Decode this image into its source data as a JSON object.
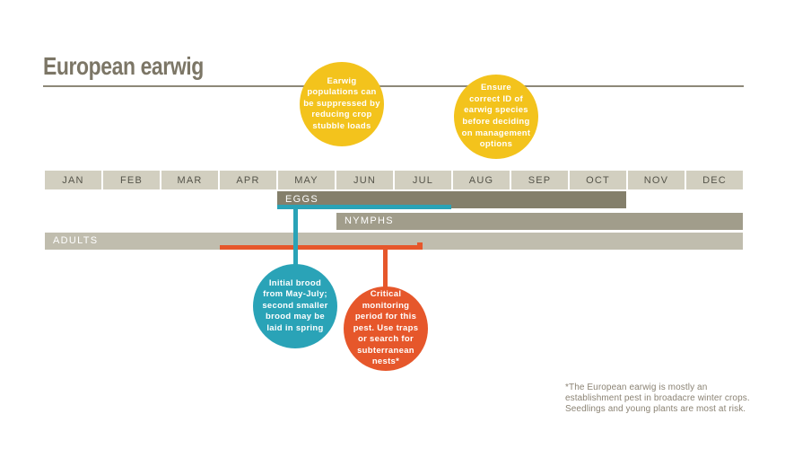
{
  "header": {
    "title": "European earwig"
  },
  "months": [
    "JAN",
    "FEB",
    "MAR",
    "APR",
    "MAY",
    "JUN",
    "JUL",
    "AUG",
    "SEP",
    "OCT",
    "NOV",
    "DEC"
  ],
  "bars": {
    "eggs": {
      "label": "EGGS"
    },
    "nymphs": {
      "label": "NYMPHS"
    },
    "adults": {
      "label": "ADULTS"
    }
  },
  "callouts": {
    "stubble": {
      "text": "Earwig\npopulations can\nbe suppressed by\nreducing crop\nstubble loads",
      "color": "#F3C31C"
    },
    "species_id": {
      "text": "Ensure\ncorrect ID of\nearwig species\nbefore deciding\non management\noptions",
      "color": "#F3C31C"
    },
    "brood": {
      "text": "Initial brood\nfrom May-July;\nsecond smaller\nbrood may be\nlaid in spring",
      "color": "#2AA3B7"
    },
    "monitoring": {
      "text": "Critical\nmonitoring\nperiod for this\npest. Use traps\nor search for\nsubterranean\nnests*",
      "color": "#E6572B"
    }
  },
  "footnote": "*The European earwig is mostly an\nestablishment pest in broadacre winter crops.\nSeedlings and young plants are most at risk.",
  "colors": {
    "yellow_callout": "#F3C31C",
    "teal_highlight": "#2AA3B7",
    "orange_highlight": "#E6572B",
    "bar_eggs": "#847F6B",
    "bar_nymphs": "#A19D8B",
    "bar_adults": "#C0BDAE",
    "month_cell": "#D2CFC0",
    "title_text": "#7C7666",
    "footnote_text": "#8B8374"
  },
  "chart_data": {
    "type": "bar",
    "subtype": "seasonal-timeline",
    "title": "European earwig",
    "categories": [
      "JAN",
      "FEB",
      "MAR",
      "APR",
      "MAY",
      "JUN",
      "JUL",
      "AUG",
      "SEP",
      "OCT",
      "NOV",
      "DEC"
    ],
    "series": [
      {
        "name": "EGGS",
        "start_month": "MAY",
        "end_month": "OCT",
        "color": "#847F6B"
      },
      {
        "name": "NYMPHS",
        "start_month": "JUN",
        "end_month": "DEC",
        "color": "#A19D8B"
      },
      {
        "name": "ADULTS",
        "start_month": "JAN",
        "end_month": "DEC",
        "color": "#C0BDAE"
      }
    ],
    "highlight_periods": [
      {
        "series": "EGGS",
        "start_month": "MAY",
        "end_month": "JUL",
        "color": "#2AA3B7",
        "annotation": "Initial brood from May-July; second smaller brood may be laid in spring"
      },
      {
        "series": "ADULTS",
        "start_month": "APR",
        "end_month": "mid-JUL",
        "color": "#E6572B",
        "annotation": "Critical monitoring period for this pest. Use traps or search for subterranean nests*"
      }
    ],
    "annotations": [
      "Earwig populations can be suppressed by reducing crop stubble loads",
      "Ensure correct ID of earwig species before deciding on management options"
    ],
    "footnote": "*The European earwig is mostly an establishment pest in broadacre winter crops. Seedlings and young plants are most at risk.",
    "legend_position": "none",
    "grid": false
  }
}
